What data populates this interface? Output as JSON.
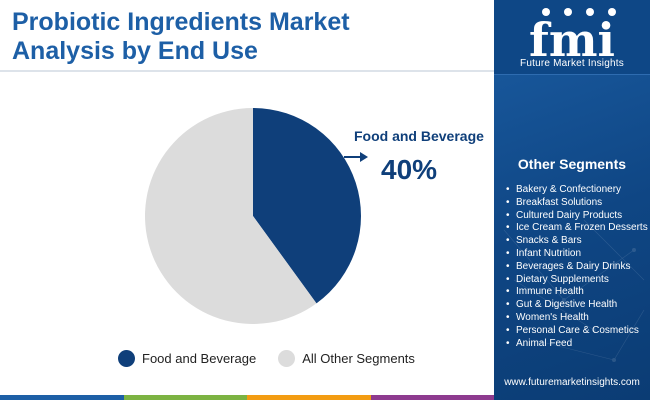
{
  "title": {
    "line1": "Probiotic Ingredients Market",
    "line2": "Analysis by End Use"
  },
  "chart_data": {
    "type": "pie",
    "title": "Probiotic Ingredients Market Analysis by End Use",
    "categories": [
      "Food and Beverage",
      "All Other Segments"
    ],
    "values": [
      40,
      60
    ],
    "colors": [
      "#0f3f7a",
      "#dcdcdc"
    ],
    "callout": {
      "label": "Food and Beverage",
      "value_text": "40%"
    },
    "legend_position": "bottom"
  },
  "legend": [
    {
      "label": "Food and Beverage",
      "color": "#0f3f7a"
    },
    {
      "label": "All Other Segments",
      "color": "#dcdcdc"
    }
  ],
  "right_panel": {
    "logo_text": "Future Market Insights",
    "logo_letters": "fmi",
    "segments_title": "Other Segments",
    "segments": [
      "Bakery & Confectionery",
      "Breakfast Solutions",
      "Cultured Dairy Products",
      "Ice Cream & Frozen Desserts",
      "Snacks & Bars",
      "Infant Nutrition",
      "Beverages & Dairy Drinks",
      "Dietary Supplements",
      "Immune Health",
      "Gut & Digestive Health",
      "Women's Health",
      "Personal Care & Cosmetics",
      "Animal Feed"
    ],
    "website": "www.futuremarketinsights.com"
  },
  "colors": {
    "title": "#1d5fa6",
    "panel": "#0f4684",
    "accent_dark": "#0f3f7a",
    "bottom_bar": [
      "#1d5fa6",
      "#7cb342",
      "#f39c12",
      "#8e3b8f"
    ]
  }
}
